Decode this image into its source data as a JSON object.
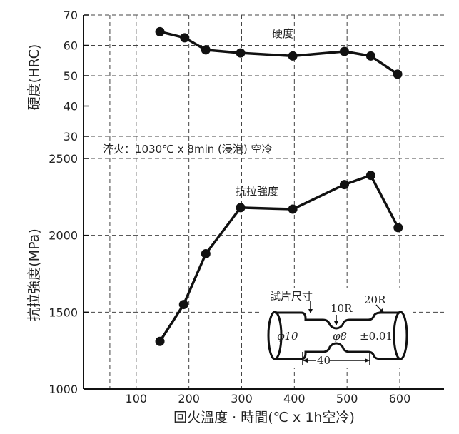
{
  "chart_data": {
    "type": "line",
    "xlabel": "回火溫度 · 時間(℃ x 1h空冷)",
    "x_ticks": [
      "100",
      "200",
      "300",
      "400",
      "500",
      "600"
    ],
    "grid": true,
    "annotation": "淬火：1030℃ x 8min (浸泡) 空冷",
    "panels": [
      {
        "ylabel": "硬度(HRC)",
        "y_ticks": [
          "70",
          "60",
          "50",
          "40",
          "30"
        ],
        "ylim": [
          30,
          70
        ],
        "series": [
          {
            "name": "硬度",
            "x": [
              145,
              192,
              232,
              298,
              397,
              495,
              545,
              596
            ],
            "y": [
              64.5,
              62.5,
              58.5,
              57.5,
              56.5,
              58.0,
              56.5,
              50.5
            ]
          }
        ]
      },
      {
        "ylabel": "抗拉強度(MPa)",
        "y_ticks": [
          "2500",
          "2000",
          "1500",
          "1000"
        ],
        "ylim": [
          1000,
          2500
        ],
        "series": [
          {
            "name": "抗拉強度",
            "x": [
              145,
              190,
              232,
              298,
              397,
              495,
              545,
              597
            ],
            "y": [
              1310,
              1550,
              1880,
              2180,
              2170,
              2330,
              2390,
              2050
            ]
          }
        ]
      }
    ],
    "specimen": {
      "title": "試片尺寸",
      "labels": [
        "10R",
        "20R",
        "φ10",
        "φ8",
        "±0.01",
        "40"
      ]
    }
  }
}
